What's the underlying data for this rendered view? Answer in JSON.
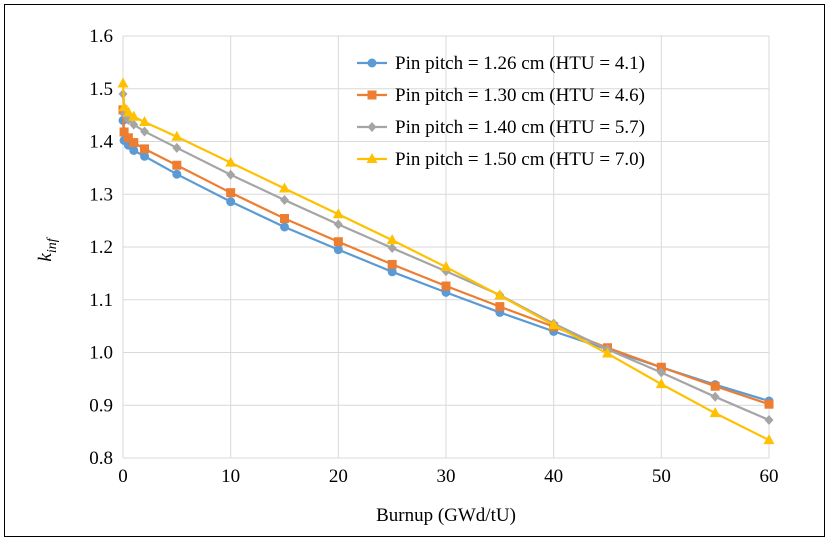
{
  "chart_data": {
    "type": "line",
    "title": "",
    "xlabel": "Burnup (GWd/tU)",
    "ylabel": "k",
    "ylabel_sub": "inf",
    "xlim": [
      0,
      60
    ],
    "ylim": [
      0.8,
      1.6
    ],
    "xticks": [
      0,
      10,
      20,
      30,
      40,
      50,
      60
    ],
    "yticks": [
      0.8,
      0.9,
      1.0,
      1.1,
      1.2,
      1.3,
      1.4,
      1.5,
      1.6
    ],
    "xtick_labels": [
      "0",
      "10",
      "20",
      "30",
      "40",
      "50",
      "60"
    ],
    "ytick_labels": [
      "0.8",
      "0.9",
      "1.0",
      "1.1",
      "1.2",
      "1.3",
      "1.4",
      "1.5",
      "1.6"
    ],
    "grid": true,
    "legend_position": "top-right",
    "x": [
      0,
      0.1,
      0.5,
      1,
      2,
      5,
      10,
      15,
      20,
      25,
      30,
      35,
      40,
      45,
      50,
      55,
      60
    ],
    "series": [
      {
        "name": "Pin pitch = 1.26 cm (HTU = 4.1)",
        "color": "#5B9BD5",
        "marker": "circle",
        "values": [
          1.44,
          1.402,
          1.393,
          1.383,
          1.372,
          1.338,
          1.286,
          1.238,
          1.195,
          1.153,
          1.114,
          1.076,
          1.04,
          1.006,
          0.972,
          0.939,
          0.908
        ]
      },
      {
        "name": "Pin pitch = 1.30 cm (HTU = 4.6)",
        "color": "#ED7D31",
        "marker": "square",
        "values": [
          1.46,
          1.418,
          1.407,
          1.398,
          1.386,
          1.355,
          1.303,
          1.254,
          1.21,
          1.167,
          1.126,
          1.087,
          1.049,
          1.009,
          0.972,
          0.936,
          0.902
        ]
      },
      {
        "name": "Pin pitch = 1.40 cm (HTU = 5.7)",
        "color": "#A5A5A5",
        "marker": "diamond",
        "values": [
          1.49,
          1.452,
          1.441,
          1.432,
          1.419,
          1.388,
          1.337,
          1.289,
          1.243,
          1.198,
          1.154,
          1.109,
          1.055,
          1.006,
          0.962,
          0.916,
          0.872
        ]
      },
      {
        "name": "Pin pitch = 1.50 cm (HTU = 7.0)",
        "color": "#FFC000",
        "marker": "triangle",
        "values": [
          1.51,
          1.465,
          1.455,
          1.447,
          1.437,
          1.409,
          1.36,
          1.311,
          1.262,
          1.213,
          1.162,
          1.108,
          1.052,
          0.998,
          0.94,
          0.885,
          0.834
        ]
      }
    ]
  }
}
